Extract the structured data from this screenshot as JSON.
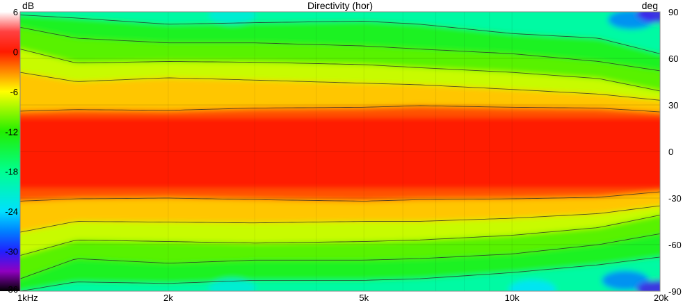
{
  "chart_data": {
    "type": "heatmap",
    "title": "Directivity (hor)",
    "x_scale": "log",
    "x_range": [
      1000,
      20000
    ],
    "x_ticks": [
      {
        "value": 1000,
        "label": "1kHz"
      },
      {
        "value": 2000,
        "label": "2k"
      },
      {
        "value": 5000,
        "label": "5k"
      },
      {
        "value": 10000,
        "label": "10k"
      },
      {
        "value": 20000,
        "label": "20k"
      }
    ],
    "y_range": [
      -90,
      90
    ],
    "y_unit": "deg",
    "y_ticks": [
      90,
      60,
      30,
      0,
      -30,
      -60,
      -90
    ],
    "colorbar": {
      "unit": "dB",
      "range": [
        -36,
        6
      ],
      "ticks": [
        6,
        0,
        -6,
        -12,
        -18,
        -24,
        -30,
        -36
      ],
      "stops": [
        {
          "db": 6,
          "color": "#ffffff"
        },
        {
          "db": 3,
          "color": "#ff4040"
        },
        {
          "db": 0,
          "color": "#ff1a00"
        },
        {
          "db": -3,
          "color": "#ff8c00"
        },
        {
          "db": -6,
          "color": "#ffff00"
        },
        {
          "db": -12,
          "color": "#22ee00"
        },
        {
          "db": -18,
          "color": "#00ff90"
        },
        {
          "db": -24,
          "color": "#00e0ff"
        },
        {
          "db": -27,
          "color": "#0080ff"
        },
        {
          "db": -30,
          "color": "#2020ff"
        },
        {
          "db": -33,
          "color": "#9000c0"
        },
        {
          "db": -36,
          "color": "#000000"
        }
      ]
    },
    "contour_step_db": 3,
    "grid": true,
    "contours_upper": [
      {
        "db": -3,
        "points": [
          [
            1000,
            26
          ],
          [
            1300,
            27
          ],
          [
            2000,
            26.5
          ],
          [
            3000,
            28
          ],
          [
            5000,
            28.5
          ],
          [
            6500,
            29.5
          ],
          [
            10000,
            28.5
          ],
          [
            15000,
            28
          ],
          [
            20000,
            25.5
          ]
        ]
      },
      {
        "db": -6,
        "points": [
          [
            1000,
            51
          ],
          [
            1300,
            45
          ],
          [
            2000,
            47.5
          ],
          [
            3000,
            46
          ],
          [
            5000,
            44
          ],
          [
            6500,
            43
          ],
          [
            10000,
            40
          ],
          [
            15000,
            37
          ],
          [
            20000,
            33
          ]
        ]
      },
      {
        "db": -9,
        "points": [
          [
            1000,
            66
          ],
          [
            1300,
            57
          ],
          [
            2000,
            58
          ],
          [
            3000,
            57.5
          ],
          [
            5000,
            56
          ],
          [
            6500,
            54
          ],
          [
            10000,
            51
          ],
          [
            15000,
            47
          ],
          [
            20000,
            39
          ]
        ]
      },
      {
        "db": -12,
        "points": [
          [
            1000,
            80
          ],
          [
            1300,
            73
          ],
          [
            2000,
            70
          ],
          [
            3000,
            70
          ],
          [
            5000,
            68
          ],
          [
            6500,
            66
          ],
          [
            10000,
            63
          ],
          [
            15000,
            58
          ],
          [
            20000,
            52
          ]
        ]
      },
      {
        "db": -15,
        "points": [
          [
            1000,
            88
          ],
          [
            1300,
            86
          ],
          [
            2000,
            82
          ],
          [
            3000,
            83
          ],
          [
            5000,
            84
          ],
          [
            6500,
            82
          ],
          [
            10000,
            76
          ],
          [
            15000,
            73
          ],
          [
            20000,
            63
          ]
        ]
      }
    ],
    "contours_lower": [
      {
        "db": -3,
        "points": [
          [
            1000,
            -32
          ],
          [
            1300,
            -30.5
          ],
          [
            2000,
            -30
          ],
          [
            3000,
            -31
          ],
          [
            5000,
            -32
          ],
          [
            6500,
            -31
          ],
          [
            10000,
            -30.5
          ],
          [
            15000,
            -29.5
          ],
          [
            20000,
            -26
          ]
        ]
      },
      {
        "db": -6,
        "points": [
          [
            1000,
            -52
          ],
          [
            1300,
            -45
          ],
          [
            2000,
            -45.5
          ],
          [
            3000,
            -46
          ],
          [
            5000,
            -45
          ],
          [
            6500,
            -45
          ],
          [
            10000,
            -43
          ],
          [
            15000,
            -40
          ],
          [
            20000,
            -35
          ]
        ]
      },
      {
        "db": -9,
        "points": [
          [
            1000,
            -67
          ],
          [
            1300,
            -57
          ],
          [
            2000,
            -58
          ],
          [
            3000,
            -59
          ],
          [
            5000,
            -58
          ],
          [
            6500,
            -57
          ],
          [
            10000,
            -54
          ],
          [
            15000,
            -49
          ],
          [
            20000,
            -41
          ]
        ]
      },
      {
        "db": -12,
        "points": [
          [
            1000,
            -82
          ],
          [
            1300,
            -69
          ],
          [
            2000,
            -72
          ],
          [
            3000,
            -70
          ],
          [
            5000,
            -70
          ],
          [
            6500,
            -69
          ],
          [
            10000,
            -66
          ],
          [
            15000,
            -60
          ],
          [
            20000,
            -53
          ]
        ]
      },
      {
        "db": -15,
        "points": [
          [
            1000,
            -90
          ],
          [
            1300,
            -84
          ],
          [
            2000,
            -85
          ],
          [
            3000,
            -83
          ],
          [
            5000,
            -83
          ],
          [
            6500,
            -82
          ],
          [
            10000,
            -78
          ],
          [
            15000,
            -73
          ],
          [
            20000,
            -68
          ]
        ]
      }
    ],
    "cold_spots": [
      {
        "x": 17500,
        "y": 85,
        "db": -27
      },
      {
        "x": 20000,
        "y": 89,
        "db": -31
      },
      {
        "x": 17000,
        "y": -83,
        "db": -27
      },
      {
        "x": 20000,
        "y": -89,
        "db": -31
      },
      {
        "x": 2700,
        "y": 88,
        "db": -22
      },
      {
        "x": 2700,
        "y": -88,
        "db": -22
      },
      {
        "x": 11000,
        "y": -89,
        "db": -24
      }
    ]
  }
}
